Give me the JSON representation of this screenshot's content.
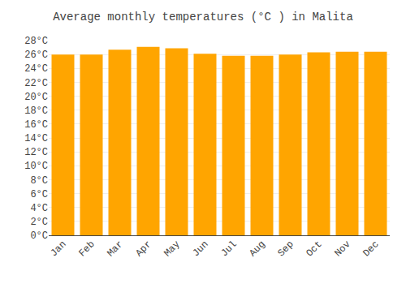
{
  "chart_data": {
    "type": "bar",
    "title": "Average monthly temperatures (°C ) in Malita",
    "categories": [
      "Jan",
      "Feb",
      "Mar",
      "Apr",
      "May",
      "Jun",
      "Jul",
      "Aug",
      "Sep",
      "Oct",
      "Nov",
      "Dec"
    ],
    "values": [
      26.0,
      26.0,
      26.7,
      27.1,
      26.9,
      26.1,
      25.8,
      25.8,
      26.0,
      26.3,
      26.4,
      26.4
    ],
    "color": "#FFA500",
    "ylim": [
      0,
      28
    ],
    "yticks": [
      {
        "value": 0,
        "label": "0°C"
      },
      {
        "value": 2,
        "label": "2°C"
      },
      {
        "value": 4,
        "label": "4°C"
      },
      {
        "value": 6,
        "label": "6°C"
      },
      {
        "value": 8,
        "label": "8°C"
      },
      {
        "value": 10,
        "label": "10°C"
      },
      {
        "value": 12,
        "label": "12°C"
      },
      {
        "value": 14,
        "label": "14°C"
      },
      {
        "value": 16,
        "label": "16°C"
      },
      {
        "value": 18,
        "label": "18°C"
      },
      {
        "value": 20,
        "label": "20°C"
      },
      {
        "value": 22,
        "label": "22°C"
      },
      {
        "value": 24,
        "label": "24°C"
      },
      {
        "value": 26,
        "label": "26°C"
      },
      {
        "value": 28,
        "label": "28°C"
      }
    ],
    "grid": true
  }
}
